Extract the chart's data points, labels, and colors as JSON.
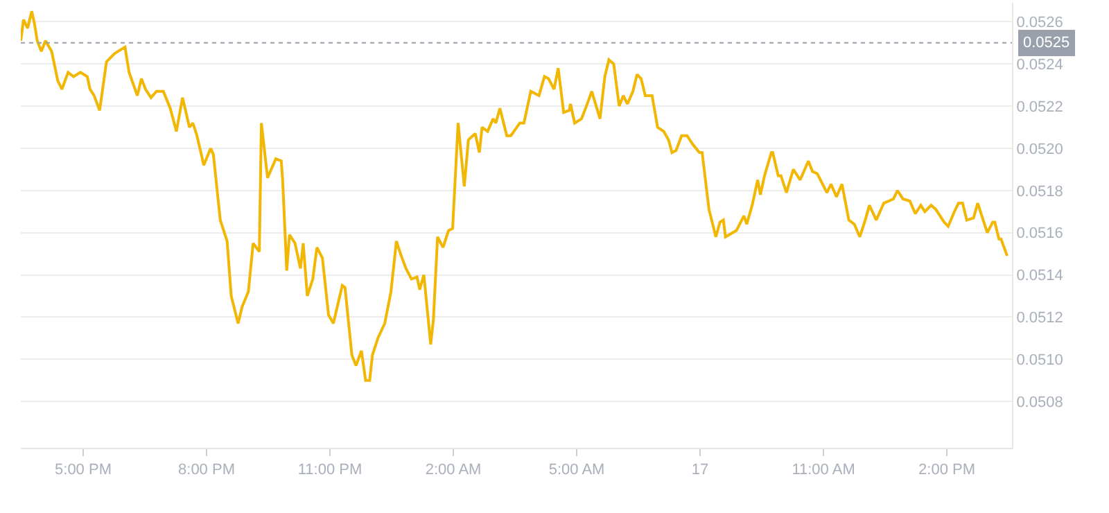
{
  "chart_data": {
    "type": "line",
    "x": [
      "--01-16T15:29",
      "--01-16T15:33",
      "--01-16T15:39",
      "--01-16T15:45",
      "--01-16T15:49",
      "--01-16T15:53",
      "--01-16T15:59",
      "--01-16T16:05",
      "--01-16T16:14",
      "--01-16T16:23",
      "--01-16T16:29",
      "--01-16T16:38",
      "--01-16T16:46",
      "--01-16T16:56",
      "--01-16T17:06",
      "--01-16T17:10",
      "--01-16T17:16",
      "--01-16T17:24",
      "--01-16T17:34",
      "--01-16T17:46",
      "--01-16T18:01",
      "--01-16T18:07",
      "--01-16T18:19",
      "--01-16T18:25",
      "--01-16T18:31",
      "--01-16T18:39",
      "--01-16T18:47",
      "--01-16T18:57",
      "--01-16T19:07",
      "--01-16T19:16",
      "--01-16T19:25",
      "--01-16T19:35",
      "--01-16T19:40",
      "--01-16T19:46",
      "--01-16T19:56",
      "--01-16T20:06",
      "--01-16T20:10",
      "--01-16T20:20",
      "--01-16T20:30",
      "--01-16T20:36",
      "--01-16T20:46",
      "--01-16T20:52",
      "--01-16T21:01",
      "--01-16T21:08",
      "--01-16T21:17",
      "--01-16T21:20",
      "--01-16T21:29",
      "--01-16T21:41",
      "--01-16T21:49",
      "--01-16T21:51",
      "--01-16T21:57",
      "--01-16T22:01",
      "--01-16T22:09",
      "--01-16T22:17",
      "--01-16T22:21",
      "--01-16T22:27",
      "--01-16T22:35",
      "--01-16T22:41",
      "--01-16T22:49",
      "--01-16T22:58",
      "--01-16T23:05",
      "--01-16T23:18",
      "--01-16T23:22",
      "--01-16T23:32",
      "--01-16T23:38",
      "--01-16T23:46",
      "--01-16T23:52",
      "--01-16T23:58",
      "--01-17T00:02",
      "--01-17T00:10",
      "--01-17T00:20",
      "--01-17T00:29",
      "--01-17T00:37",
      "--01-17T00:43",
      "--01-17T00:51",
      "--01-17T00:59",
      "--01-17T01:07",
      "--01-17T01:11",
      "--01-17T01:17",
      "--01-17T01:27",
      "--01-17T01:31",
      "--01-17T01:37",
      "--01-17T01:45",
      "--01-17T01:53",
      "--01-17T01:59",
      "--01-17T02:07",
      "--01-17T02:16",
      "--01-17T02:22",
      "--01-17T02:32",
      "--01-17T02:38",
      "--01-17T02:42",
      "--01-17T02:50",
      "--01-17T02:58",
      "--01-17T03:02",
      "--01-17T03:08",
      "--01-17T03:18",
      "--01-17T03:24",
      "--01-17T03:37",
      "--01-17T03:43",
      "--01-17T03:53",
      "--01-17T04:05",
      "--01-17T04:13",
      "--01-17T04:19",
      "--01-17T04:27",
      "--01-17T04:33",
      "--01-17T04:41",
      "--01-17T04:49",
      "--01-17T04:51",
      "--01-17T04:57",
      "--01-17T05:07",
      "--01-17T05:13",
      "--01-17T05:22",
      "--01-17T05:34",
      "--01-17T05:41",
      "--01-17T05:47",
      "--01-17T05:54",
      "--01-17T06:02",
      "--01-17T06:08",
      "--01-17T06:14",
      "--01-17T06:22",
      "--01-17T06:28",
      "--01-17T06:34",
      "--01-17T06:40",
      "--01-17T06:50",
      "--01-17T06:58",
      "--01-17T07:07",
      "--01-17T07:14",
      "--01-17T07:19",
      "--01-17T07:25",
      "--01-17T07:33",
      "--01-17T07:41",
      "--01-17T07:49",
      "--01-17T07:59",
      "--01-17T08:03",
      "--01-17T08:13",
      "--01-17T08:23",
      "--01-17T08:29",
      "--01-17T08:34",
      "--01-17T08:37",
      "--01-17T08:53",
      "--01-17T09:04",
      "--01-17T09:08",
      "--01-17T09:16",
      "--01-17T09:24",
      "--01-17T09:28",
      "--01-17T09:34",
      "--01-17T09:44",
      "--01-17T09:46",
      "--01-17T09:54",
      "--01-17T09:58",
      "--01-17T10:06",
      "--01-17T10:16",
      "--01-17T10:26",
      "--01-17T10:38",
      "--01-17T10:44",
      "--01-17T10:51",
      "--01-17T11:05",
      "--01-17T11:11",
      "--01-17T11:19",
      "--01-17T11:27",
      "--01-17T11:37",
      "--01-17T11:45",
      "--01-17T11:53",
      "--01-17T12:01",
      "--01-17T12:07",
      "--01-17T12:17",
      "--01-17T12:28",
      "--01-17T12:42",
      "--01-17T12:48",
      "--01-17T12:56",
      "--01-17T13:06",
      "--01-17T13:14",
      "--01-17T13:22",
      "--01-17T13:28",
      "--01-17T13:37",
      "--01-17T13:44",
      "--01-17T13:56",
      "--01-17T14:02",
      "--01-17T14:11",
      "--01-17T14:17",
      "--01-17T14:23",
      "--01-17T14:29",
      "--01-17T14:39",
      "--01-17T14:45",
      "--01-17T14:57",
      "--01-17T14:59",
      "--01-17T15:07",
      "--01-17T15:10",
      "--01-17T15:16",
      "--01-17T15:19",
      "--01-17T15:28"
    ],
    "series": [
      {
        "color": "#f2b705",
        "values": [
          0.05251,
          0.05261,
          0.05257,
          0.05265,
          0.05259,
          0.05251,
          0.05246,
          0.05251,
          0.05246,
          0.05232,
          0.05228,
          0.05236,
          0.05234,
          0.05236,
          0.05234,
          0.05228,
          0.05225,
          0.05218,
          0.05241,
          0.05245,
          0.05248,
          0.05236,
          0.05225,
          0.05233,
          0.05228,
          0.05224,
          0.05227,
          0.05227,
          0.05219,
          0.05208,
          0.05224,
          0.0521,
          0.05212,
          0.05206,
          0.05192,
          0.052,
          0.05197,
          0.05166,
          0.05156,
          0.0513,
          0.05117,
          0.05125,
          0.05132,
          0.05155,
          0.05151,
          0.05212,
          0.05186,
          0.05195,
          0.05194,
          0.05185,
          0.05142,
          0.05159,
          0.05155,
          0.05143,
          0.05155,
          0.0513,
          0.05138,
          0.05153,
          0.05148,
          0.05121,
          0.05117,
          0.05135,
          0.05134,
          0.05102,
          0.05097,
          0.05104,
          0.0509,
          0.0509,
          0.05102,
          0.0511,
          0.05117,
          0.05132,
          0.05156,
          0.0515,
          0.05143,
          0.05138,
          0.05139,
          0.05133,
          0.0514,
          0.05107,
          0.05119,
          0.05158,
          0.05153,
          0.05161,
          0.05162,
          0.05212,
          0.05182,
          0.05204,
          0.05207,
          0.05198,
          0.0521,
          0.05208,
          0.05214,
          0.05212,
          0.05219,
          0.05206,
          0.05206,
          0.05212,
          0.05212,
          0.05227,
          0.05225,
          0.05234,
          0.05233,
          0.05228,
          0.05238,
          0.05217,
          0.05218,
          0.05221,
          0.05212,
          0.05214,
          0.05219,
          0.05227,
          0.05214,
          0.05234,
          0.05242,
          0.0524,
          0.0522,
          0.05225,
          0.05221,
          0.05227,
          0.05235,
          0.05233,
          0.05225,
          0.05225,
          0.0521,
          0.05208,
          0.05204,
          0.05198,
          0.05199,
          0.05206,
          0.05206,
          0.05202,
          0.05198,
          0.05198,
          0.05171,
          0.05158,
          0.05165,
          0.05166,
          0.05158,
          0.05161,
          0.05168,
          0.05164,
          0.05173,
          0.05185,
          0.05178,
          0.05187,
          0.05198,
          0.05198,
          0.05187,
          0.05187,
          0.05179,
          0.0519,
          0.05185,
          0.05194,
          0.05189,
          0.05188,
          0.05179,
          0.05183,
          0.05177,
          0.05183,
          0.05166,
          0.05164,
          0.05158,
          0.05166,
          0.05173,
          0.05166,
          0.05174,
          0.05176,
          0.0518,
          0.05176,
          0.05175,
          0.05169,
          0.05173,
          0.0517,
          0.05173,
          0.05171,
          0.05165,
          0.05163,
          0.0517,
          0.05174,
          0.05174,
          0.05166,
          0.05167,
          0.05174,
          0.05162,
          0.0516,
          0.05165,
          0.05165,
          0.05157,
          0.05157,
          0.05149
        ]
      }
    ],
    "xlim": [
      "--01-16T15:29",
      "--01-17T15:35"
    ],
    "xticks": [
      {
        "value": "--01-16T17:00",
        "label": "5:00 PM"
      },
      {
        "value": "--01-16T20:00",
        "label": "8:00 PM"
      },
      {
        "value": "--01-16T23:00",
        "label": "11:00 PM"
      },
      {
        "value": "--01-17T02:00",
        "label": "2:00 AM"
      },
      {
        "value": "--01-17T05:00",
        "label": "5:00 AM"
      },
      {
        "value": "--01-17T08:00",
        "label": "17"
      },
      {
        "value": "--01-17T11:00",
        "label": "11:00 AM"
      },
      {
        "value": "--01-17T14:00",
        "label": "2:00 PM"
      }
    ],
    "ylim": [
      0.05058,
      0.05269
    ],
    "yticks": [
      {
        "value": 0.0508,
        "label": "0.0508"
      },
      {
        "value": 0.051,
        "label": "0.0510"
      },
      {
        "value": 0.0512,
        "label": "0.0512"
      },
      {
        "value": 0.0514,
        "label": "0.0514"
      },
      {
        "value": 0.0516,
        "label": "0.0516"
      },
      {
        "value": 0.0518,
        "label": "0.0518"
      },
      {
        "value": 0.052,
        "label": "0.0520"
      },
      {
        "value": 0.0522,
        "label": "0.0522"
      },
      {
        "value": 0.0524,
        "label": "0.0524"
      },
      {
        "value": 0.0526,
        "label": "0.0526"
      }
    ],
    "ref_lines": [
      {
        "axis": "y",
        "value": 0.0525,
        "label": "0.0525",
        "color": "#9aa0ab",
        "line_style": "dotted"
      }
    ],
    "grid": "y",
    "marker": "none",
    "line_style": "solid"
  }
}
